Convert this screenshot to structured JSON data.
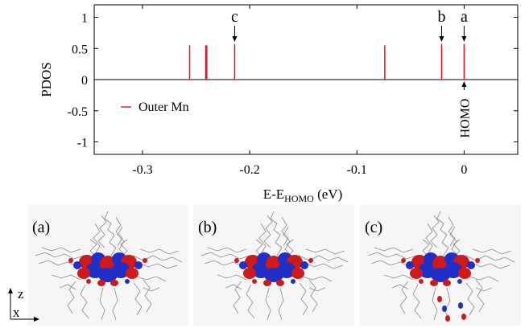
{
  "chart_data": {
    "type": "bar",
    "xlabel": "E-E",
    "xlabel_sub": "HOMO",
    "xlabel_unit": " (eV)",
    "ylabel": "PDOS",
    "xlim": [
      -0.345,
      0.05
    ],
    "ylim": [
      -1.2,
      1.2
    ],
    "xticks": [
      -0.3,
      -0.2,
      -0.1,
      0
    ],
    "xtick_labels": [
      "-0.3",
      "-0.2",
      "-0.1",
      "0"
    ],
    "yticks": [
      1,
      0.5,
      0,
      -0.5,
      -1
    ],
    "ytick_labels": [
      "1",
      "0.5",
      "0",
      "-0.5",
      "-1"
    ],
    "grid": false,
    "legend_position": "left",
    "series": [
      {
        "name": "Outer Mn",
        "color": "#e0141e",
        "x": [
          -0.256,
          -0.241,
          -0.24,
          -0.214,
          -0.074,
          -0.021,
          0.0
        ],
        "values": [
          0.55,
          0.55,
          0.55,
          0.57,
          0.55,
          0.57,
          0.57
        ]
      }
    ],
    "annotations": [
      {
        "label": "c",
        "x": -0.214
      },
      {
        "label": "b",
        "x": -0.021
      },
      {
        "label": "a",
        "x": 0.0
      }
    ],
    "homo_marker": {
      "label": "HOMO",
      "x": 0.0
    }
  },
  "panels": [
    {
      "label": "(a)"
    },
    {
      "label": "(b)"
    },
    {
      "label": "(c)"
    }
  ],
  "axes_indicator": {
    "z_label": "z",
    "x_label": "x"
  },
  "colors": {
    "line": "#e0141e",
    "lobe_red": "#d01a1a",
    "lobe_blue": "#1f2fc8",
    "frame": "#777777"
  }
}
